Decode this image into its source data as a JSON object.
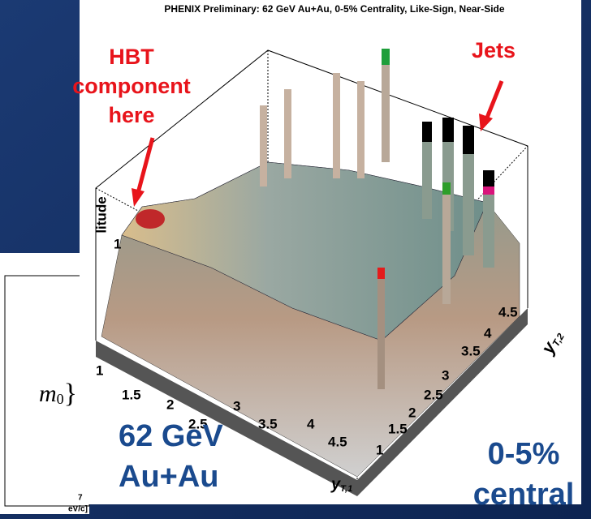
{
  "plot": {
    "title": "PHENIX Preliminary: 62 GeV Au+Au, 0-5% Centrality, Like-Sign, Near-Side",
    "z_axis_label": "litude",
    "z_ticks": [
      "1"
    ],
    "x_ticks": [
      "1",
      "1.5",
      "2",
      "2.5",
      "3",
      "3.5",
      "4",
      "4.5"
    ],
    "x_axis_label": "y",
    "x_axis_sub": "T,1",
    "y_ticks": [
      "1",
      "1.5",
      "2",
      "2.5",
      "3",
      "3.5",
      "4",
      "4.5"
    ],
    "y_axis_label": "y",
    "y_axis_sub": "T,2"
  },
  "annotations": {
    "hbt": [
      "HBT",
      "component",
      "here"
    ],
    "jets": "Jets"
  },
  "captions": {
    "energy": [
      "62 GeV",
      "Au+Au"
    ],
    "centrality": [
      "0-5%",
      "central"
    ]
  },
  "left_panel": {
    "formula": "m",
    "formula_sub": "0",
    "formula_brace": "}",
    "tick": "7",
    "axis_unit": "eV/c]"
  }
}
